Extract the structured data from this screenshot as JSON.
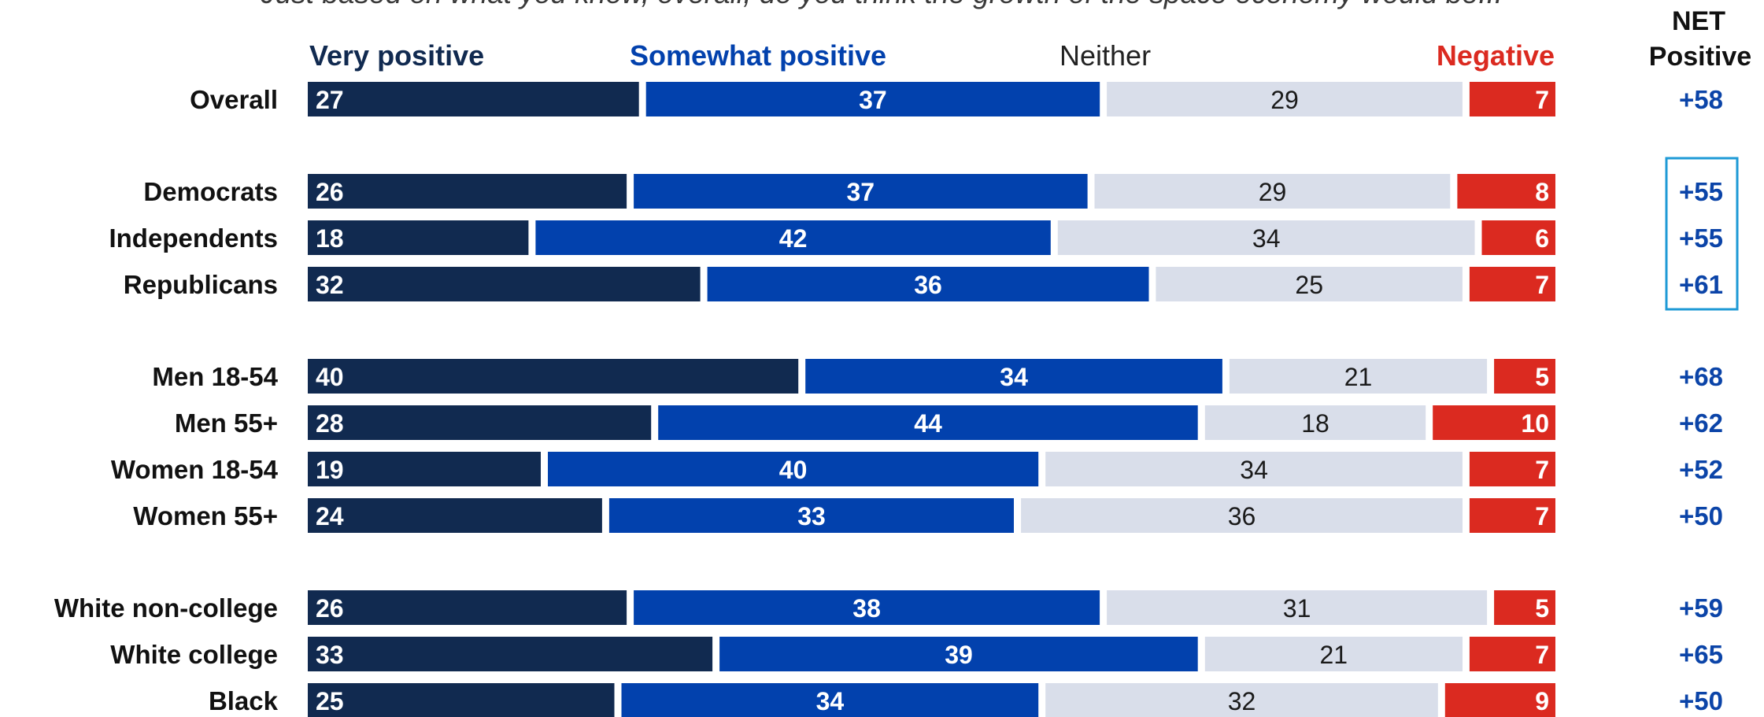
{
  "question": "Just based on what you know, overall, do you think the growth of the space economy would be...",
  "colors": {
    "very_positive": "#112a50",
    "somewhat_positive": "#0241ad",
    "neither": "#d9deea",
    "negative": "#db2a20",
    "net_text": "#0b44a8",
    "highlight_border": "#1e9ad6"
  },
  "net_header": {
    "line1": "NET",
    "line2": "Positive"
  },
  "chart_data": {
    "type": "bar",
    "orientation": "horizontal",
    "stacked": true,
    "xlim": [
      0,
      100
    ],
    "categories": [
      "Overall",
      "Democrats",
      "Independents",
      "Republicans",
      "Men 18-54",
      "Men 55+",
      "Women 18-54",
      "Women 55+",
      "White non-college",
      "White college",
      "Black"
    ],
    "series": [
      {
        "name": "Very positive",
        "values": [
          27,
          26,
          18,
          32,
          40,
          28,
          19,
          24,
          26,
          33,
          25
        ]
      },
      {
        "name": "Somewhat positive",
        "values": [
          37,
          37,
          42,
          36,
          34,
          44,
          40,
          33,
          38,
          39,
          34
        ]
      },
      {
        "name": "Neither",
        "values": [
          29,
          29,
          34,
          25,
          21,
          18,
          34,
          36,
          31,
          21,
          32
        ]
      },
      {
        "name": "Negative",
        "values": [
          7,
          8,
          6,
          7,
          5,
          10,
          7,
          7,
          5,
          7,
          9
        ]
      }
    ],
    "net_positive": [
      "+58",
      "+55",
      "+55",
      "+61",
      "+68",
      "+62",
      "+52",
      "+50",
      "+59",
      "+65",
      "+50"
    ],
    "groups": [
      [
        0
      ],
      [
        1,
        2,
        3
      ],
      [
        4,
        5,
        6,
        7
      ],
      [
        8,
        9,
        10
      ]
    ],
    "highlighted_net_group": 1,
    "legend_placement": "top"
  }
}
